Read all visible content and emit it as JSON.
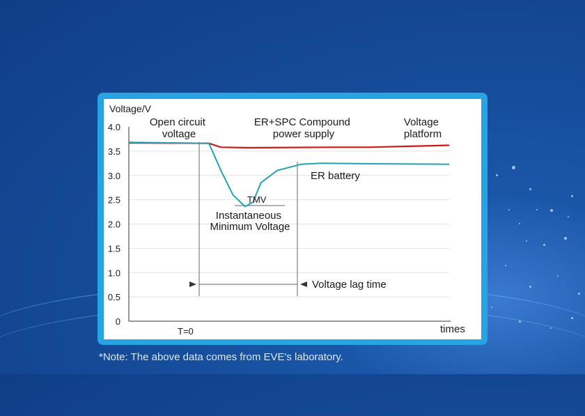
{
  "colors": {
    "platform_line": "#d01818",
    "battery_line": "#22a3b3",
    "marker": "#555555",
    "frame": "#29a4e3"
  },
  "chart_data": {
    "type": "line",
    "ylabel": "Voltage/V",
    "xlabel": "times",
    "ylim": [
      0,
      4.0
    ],
    "yticks": [
      "4.0",
      "3.5",
      "3.0",
      "2.5",
      "2.0",
      "1.5",
      "1.0",
      "0.5",
      "0"
    ],
    "grid": true,
    "t0_label": "T=0",
    "series": [
      {
        "name": "ER+SPC Compound power supply",
        "points": [
          [
            0,
            3.67
          ],
          [
            100,
            3.66
          ],
          [
            115,
            3.58
          ],
          [
            150,
            3.57
          ],
          [
            250,
            3.58
          ],
          [
            300,
            3.58
          ],
          [
            350,
            3.6
          ],
          [
            400,
            3.62
          ]
        ]
      },
      {
        "name": "ER battery",
        "points": [
          [
            0,
            3.68
          ],
          [
            100,
            3.66
          ],
          [
            115,
            3.1
          ],
          [
            130,
            2.6
          ],
          [
            145,
            2.36
          ],
          [
            155,
            2.45
          ],
          [
            165,
            2.85
          ],
          [
            185,
            3.1
          ],
          [
            215,
            3.23
          ],
          [
            240,
            3.25
          ],
          [
            300,
            3.24
          ],
          [
            400,
            3.23
          ]
        ]
      }
    ],
    "annotations": {
      "open_circuit": [
        "Open circuit",
        "voltage"
      ],
      "compound": [
        "ER+SPC Compound",
        "power supply"
      ],
      "platform": [
        "Voltage",
        "platform"
      ],
      "er_battery": "ER battery",
      "tmv": "TMV",
      "instantaneous": [
        "Instantaneous",
        "Minimum Voltage"
      ],
      "lag": "Voltage lag time"
    }
  },
  "footer": {
    "note": "*Note: The above data comes from EVE's laboratory."
  }
}
